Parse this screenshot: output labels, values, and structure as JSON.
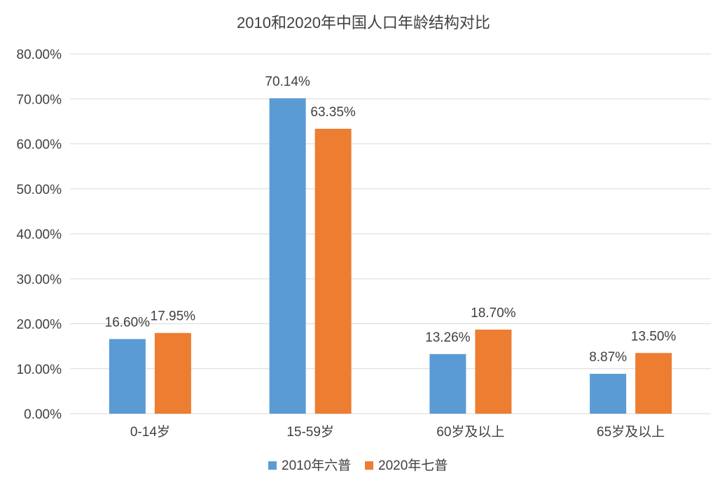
{
  "chart_data": {
    "type": "bar",
    "title": "2010和2020年中国人口年龄结构对比",
    "categories": [
      "0-14岁",
      "15-59岁",
      "60岁及以上",
      "65岁及以上"
    ],
    "series": [
      {
        "name": "2010年六普",
        "color": "#5b9bd5",
        "values": [
          16.6,
          70.14,
          13.26,
          8.87
        ],
        "labels": [
          "16.60%",
          "70.14%",
          "13.26%",
          "8.87%"
        ]
      },
      {
        "name": "2020年七普",
        "color": "#ed7d31",
        "values": [
          17.95,
          63.35,
          18.7,
          13.5
        ],
        "labels": [
          "17.95%",
          "63.35%",
          "18.70%",
          "13.50%"
        ]
      }
    ],
    "yticks": [
      "0.00%",
      "10.00%",
      "20.00%",
      "30.00%",
      "40.00%",
      "50.00%",
      "60.00%",
      "70.00%",
      "80.00%"
    ],
    "ylim": [
      0,
      80
    ],
    "xlabel": "",
    "ylabel": "",
    "grid": true,
    "legend_position": "bottom",
    "text_color": "#404040",
    "grid_color": "#d9d9d9"
  }
}
